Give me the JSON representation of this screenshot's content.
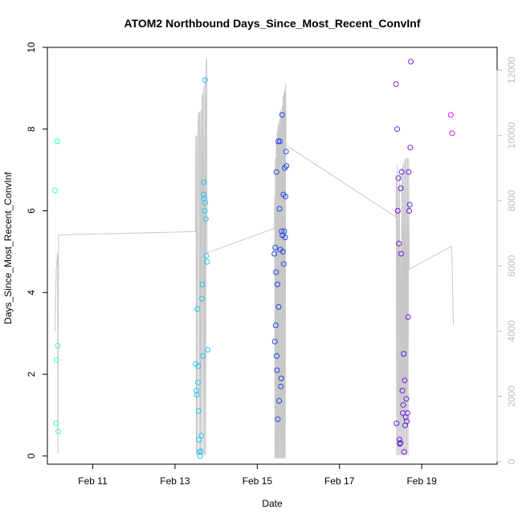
{
  "chart_data": {
    "type": "scatter",
    "title": "ATOM2 Northbound Days_Since_Most_Recent_ConvInf",
    "xlabel": "Date",
    "ylabel": "Days_Since_Most_Recent_ConvInf",
    "x_date_range": [
      "2012-02-09 21:30",
      "2012-02-20 20:00"
    ],
    "ylim": [
      -0.2,
      10
    ],
    "x_ticks": [
      {
        "date": "2012-02-11",
        "label": "Feb 11"
      },
      {
        "date": "2012-02-13",
        "label": "Feb 13"
      },
      {
        "date": "2012-02-15",
        "label": "Feb 15"
      },
      {
        "date": "2012-02-17",
        "label": "Feb 17"
      },
      {
        "date": "2012-02-19",
        "label": "Feb 19"
      }
    ],
    "y_ticks": [
      0,
      2,
      4,
      6,
      8,
      10
    ],
    "secondary_axis": {
      "side": "right",
      "color": "#bdbdbd",
      "lim": [
        -80,
        12700
      ],
      "ticks": [
        0,
        2000,
        4000,
        6000,
        8000,
        10000,
        12000
      ]
    },
    "grid": false,
    "series": [
      {
        "color": "#3df5d2",
        "points": [
          [
            "2012-02-10 02:00",
            6.5
          ],
          [
            "2012-02-10 02:30",
            0.8
          ],
          [
            "2012-02-10 02:45",
            2.35
          ],
          [
            "2012-02-10 03:10",
            7.7
          ],
          [
            "2012-02-10 03:30",
            2.7
          ],
          [
            "2012-02-10 03:50",
            0.6
          ]
        ]
      },
      {
        "color": "#22c7f2",
        "points": [
          [
            "2012-02-13 12:00",
            2.25
          ],
          [
            "2012-02-13 12:30",
            1.6
          ],
          [
            "2012-02-13 12:45",
            1.5
          ],
          [
            "2012-02-13 13:00",
            3.6
          ],
          [
            "2012-02-13 13:20",
            1.8
          ],
          [
            "2012-02-13 13:30",
            2.2
          ],
          [
            "2012-02-13 13:45",
            1.1
          ],
          [
            "2012-02-13 14:00",
            0.4
          ],
          [
            "2012-02-13 14:20",
            0.1
          ],
          [
            "2012-02-13 14:40",
            0.0
          ],
          [
            "2012-02-13 15:00",
            0.12
          ],
          [
            "2012-02-13 15:20",
            0.5
          ],
          [
            "2012-02-13 15:40",
            3.85
          ],
          [
            "2012-02-13 16:00",
            4.2
          ],
          [
            "2012-02-13 16:20",
            2.45
          ],
          [
            "2012-02-13 16:40",
            6.4
          ],
          [
            "2012-02-13 16:50",
            6.7
          ],
          [
            "2012-02-13 17:00",
            6.3
          ],
          [
            "2012-02-13 17:20",
            6.0
          ],
          [
            "2012-02-13 17:30",
            9.2
          ],
          [
            "2012-02-13 17:40",
            6.2
          ],
          [
            "2012-02-13 18:00",
            5.8
          ],
          [
            "2012-02-13 18:20",
            4.9
          ],
          [
            "2012-02-13 18:40",
            4.75
          ],
          [
            "2012-02-13 19:00",
            2.6
          ]
        ]
      },
      {
        "color": "#2148e8",
        "points": [
          [
            "2012-02-15 10:00",
            4.95
          ],
          [
            "2012-02-15 10:15",
            2.8
          ],
          [
            "2012-02-15 10:30",
            5.1
          ],
          [
            "2012-02-15 10:45",
            3.2
          ],
          [
            "2012-02-15 11:00",
            4.5
          ],
          [
            "2012-02-15 11:10",
            6.95
          ],
          [
            "2012-02-15 11:20",
            2.45
          ],
          [
            "2012-02-15 11:30",
            2.1
          ],
          [
            "2012-02-15 11:45",
            4.2
          ],
          [
            "2012-02-15 12:00",
            0.9
          ],
          [
            "2012-02-15 12:15",
            7.7
          ],
          [
            "2012-02-15 12:30",
            3.65
          ],
          [
            "2012-02-15 12:45",
            1.35
          ],
          [
            "2012-02-15 13:00",
            6.05
          ],
          [
            "2012-02-15 13:15",
            7.7
          ],
          [
            "2012-02-15 13:30",
            5.05
          ],
          [
            "2012-02-15 13:45",
            1.7
          ],
          [
            "2012-02-15 14:00",
            1.9
          ],
          [
            "2012-02-15 14:15",
            5.5
          ],
          [
            "2012-02-15 14:30",
            8.35
          ],
          [
            "2012-02-15 14:45",
            5.4
          ],
          [
            "2012-02-15 15:00",
            5.0
          ],
          [
            "2012-02-15 15:15",
            6.4
          ],
          [
            "2012-02-15 15:30",
            4.7
          ],
          [
            "2012-02-15 15:45",
            5.5
          ],
          [
            "2012-02-15 16:00",
            7.05
          ],
          [
            "2012-02-15 16:15",
            5.35
          ],
          [
            "2012-02-15 16:30",
            6.35
          ],
          [
            "2012-02-15 16:45",
            7.45
          ],
          [
            "2012-02-15 17:00",
            7.1
          ]
        ]
      },
      {
        "color": "#6a1ee3",
        "points": [
          [
            "2012-02-18 09:00",
            9.1
          ],
          [
            "2012-02-18 09:20",
            0.8
          ],
          [
            "2012-02-18 09:40",
            8.0
          ],
          [
            "2012-02-18 10:00",
            6.0
          ],
          [
            "2012-02-18 10:20",
            6.8
          ],
          [
            "2012-02-18 10:40",
            5.2
          ],
          [
            "2012-02-18 11:00",
            0.4
          ],
          [
            "2012-02-18 11:15",
            0.3
          ],
          [
            "2012-02-18 11:30",
            0.32
          ],
          [
            "2012-02-18 11:45",
            6.55
          ],
          [
            "2012-02-18 12:00",
            4.95
          ],
          [
            "2012-02-18 12:20",
            6.95
          ],
          [
            "2012-02-18 12:40",
            1.6
          ],
          [
            "2012-02-18 13:00",
            1.05
          ],
          [
            "2012-02-18 13:15",
            1.25
          ],
          [
            "2012-02-18 13:30",
            2.5
          ],
          [
            "2012-02-18 13:45",
            0.1
          ],
          [
            "2012-02-18 14:00",
            1.85
          ],
          [
            "2012-02-18 14:20",
            0.75
          ],
          [
            "2012-02-18 14:40",
            0.95
          ],
          [
            "2012-02-18 15:00",
            1.4
          ],
          [
            "2012-02-18 15:20",
            0.85
          ],
          [
            "2012-02-18 15:40",
            1.05
          ],
          [
            "2012-02-18 16:00",
            3.4
          ],
          [
            "2012-02-18 16:20",
            6.95
          ],
          [
            "2012-02-18 16:40",
            6.0
          ],
          [
            "2012-02-18 17:00",
            6.15
          ],
          [
            "2012-02-18 17:20",
            7.55
          ],
          [
            "2012-02-18 17:40",
            9.65
          ]
        ]
      },
      {
        "color": "#c81ee6",
        "points": [
          [
            "2012-02-19 17:00",
            8.35
          ],
          [
            "2012-02-19 17:45",
            7.9
          ]
        ]
      }
    ],
    "secondary_line": {
      "color": "#c8c8c8",
      "points": [
        [
          "2012-02-10 02:00",
          4000
        ],
        [
          "2012-02-10 02:40",
          5900
        ],
        [
          "2012-02-10 03:00",
          6100
        ],
        [
          "2012-02-10 03:20",
          6300
        ],
        [
          "2012-02-10 03:30",
          6400
        ],
        [
          "2012-02-10 03:40",
          250
        ],
        [
          "2012-02-10 04:00",
          6950
        ],
        [
          "2012-02-13 12:00",
          7050
        ],
        [
          "2012-02-13 12:10",
          9800
        ],
        [
          "2012-02-13 12:20",
          10000
        ],
        [
          "2012-02-13 12:30",
          200
        ],
        [
          "2012-02-13 12:40",
          10000
        ],
        [
          "2012-02-13 13:00",
          200
        ],
        [
          "2012-02-13 13:20",
          10000
        ],
        [
          "2012-02-13 13:40",
          10600
        ],
        [
          "2012-02-13 14:00",
          10700
        ],
        [
          "2012-02-13 14:10",
          200
        ],
        [
          "2012-02-13 14:30",
          10750
        ],
        [
          "2012-02-13 14:50",
          200
        ],
        [
          "2012-02-13 15:10",
          10800
        ],
        [
          "2012-02-13 15:30",
          200
        ],
        [
          "2012-02-13 15:50",
          11200
        ],
        [
          "2012-02-13 16:10",
          11300
        ],
        [
          "2012-02-13 16:30",
          200
        ],
        [
          "2012-02-13 16:50",
          11500
        ],
        [
          "2012-02-13 17:10",
          200
        ],
        [
          "2012-02-13 17:30",
          11800
        ],
        [
          "2012-02-13 17:50",
          200
        ],
        [
          "2012-02-13 18:10",
          12200
        ],
        [
          "2012-02-13 18:30",
          12400
        ],
        [
          "2012-02-13 18:40",
          6400
        ],
        [
          "2012-02-15 10:00",
          7150
        ],
        [
          "2012-02-15 10:10",
          8100
        ],
        [
          "2012-02-15 10:20",
          100
        ],
        [
          "2012-02-15 10:35",
          9300
        ],
        [
          "2012-02-15 10:50",
          100
        ],
        [
          "2012-02-15 11:05",
          9800
        ],
        [
          "2012-02-15 11:20",
          100
        ],
        [
          "2012-02-15 11:35",
          10100
        ],
        [
          "2012-02-15 11:50",
          100
        ],
        [
          "2012-02-15 12:05",
          10300
        ],
        [
          "2012-02-15 12:20",
          100
        ],
        [
          "2012-02-15 12:35",
          10400
        ],
        [
          "2012-02-15 12:50",
          100
        ],
        [
          "2012-02-15 13:05",
          10500
        ],
        [
          "2012-02-15 13:20",
          100
        ],
        [
          "2012-02-15 13:35",
          10800
        ],
        [
          "2012-02-15 13:50",
          100
        ],
        [
          "2012-02-15 14:05",
          10700
        ],
        [
          "2012-02-15 14:20",
          100
        ],
        [
          "2012-02-15 14:35",
          10900
        ],
        [
          "2012-02-15 14:50",
          100
        ],
        [
          "2012-02-15 15:05",
          11200
        ],
        [
          "2012-02-15 15:20",
          100
        ],
        [
          "2012-02-15 15:35",
          11300
        ],
        [
          "2012-02-15 15:50",
          100
        ],
        [
          "2012-02-15 16:05",
          11400
        ],
        [
          "2012-02-15 16:20",
          100
        ],
        [
          "2012-02-15 16:35",
          11600
        ],
        [
          "2012-02-15 16:50",
          9700
        ],
        [
          "2012-02-18 09:00",
          7500
        ],
        [
          "2012-02-18 09:10",
          8600
        ],
        [
          "2012-02-18 09:20",
          200
        ],
        [
          "2012-02-18 09:40",
          9100
        ],
        [
          "2012-02-18 10:00",
          200
        ],
        [
          "2012-02-18 10:20",
          8400
        ],
        [
          "2012-02-18 10:40",
          200
        ],
        [
          "2012-02-18 11:00",
          8800
        ],
        [
          "2012-02-18 11:20",
          200
        ],
        [
          "2012-02-18 11:40",
          6600
        ],
        [
          "2012-02-18 12:00",
          200
        ],
        [
          "2012-02-18 12:20",
          9000
        ],
        [
          "2012-02-18 12:40",
          200
        ],
        [
          "2012-02-18 13:00",
          9100
        ],
        [
          "2012-02-18 13:20",
          200
        ],
        [
          "2012-02-18 13:40",
          9200
        ],
        [
          "2012-02-18 14:00",
          200
        ],
        [
          "2012-02-18 14:20",
          9300
        ],
        [
          "2012-02-18 14:40",
          200
        ],
        [
          "2012-02-18 15:00",
          9300
        ],
        [
          "2012-02-18 15:20",
          200
        ],
        [
          "2012-02-18 15:40",
          9300
        ],
        [
          "2012-02-18 16:00",
          200
        ],
        [
          "2012-02-18 16:20",
          9300
        ],
        [
          "2012-02-18 16:40",
          5900
        ],
        [
          "2012-02-19 17:30",
          6600
        ],
        [
          "2012-02-19 18:30",
          4200
        ]
      ]
    }
  }
}
